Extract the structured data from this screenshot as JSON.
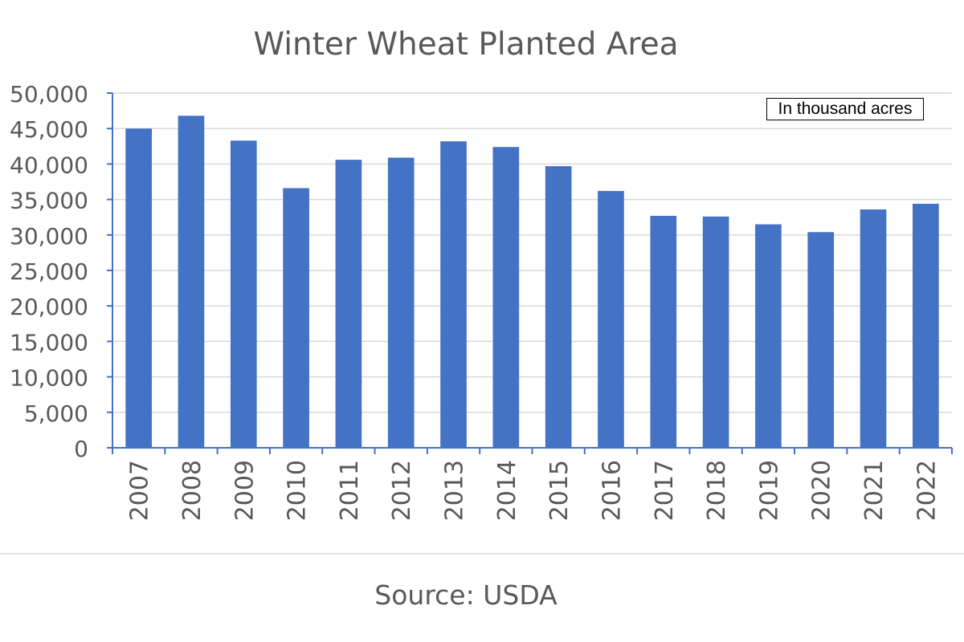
{
  "chart_data": {
    "type": "bar",
    "title": "Winter Wheat Planted Area",
    "annotation": "In thousand acres",
    "source": "Source: USDA",
    "xlabel": "",
    "ylabel": "",
    "categories": [
      "2007",
      "2008",
      "2009",
      "2010",
      "2011",
      "2012",
      "2013",
      "2014",
      "2015",
      "2016",
      "2017",
      "2018",
      "2019",
      "2020",
      "2021",
      "2022"
    ],
    "values": [
      45000,
      46800,
      43300,
      36600,
      40600,
      40900,
      43200,
      42400,
      39700,
      36200,
      32700,
      32600,
      31500,
      30400,
      33600,
      34400
    ],
    "ylim": [
      0,
      50000
    ],
    "yticks": [
      0,
      5000,
      10000,
      15000,
      20000,
      25000,
      30000,
      35000,
      40000,
      45000,
      50000
    ],
    "ytick_labels": [
      "0",
      "5,000",
      "10,000",
      "15,000",
      "20,000",
      "25,000",
      "30,000",
      "35,000",
      "40,000",
      "45,000",
      "50,000"
    ],
    "grid": true,
    "colors": {
      "bar": "#4472c4",
      "grid": "#d9d9d9",
      "axis": "#4472c4",
      "text": "#595959"
    }
  }
}
